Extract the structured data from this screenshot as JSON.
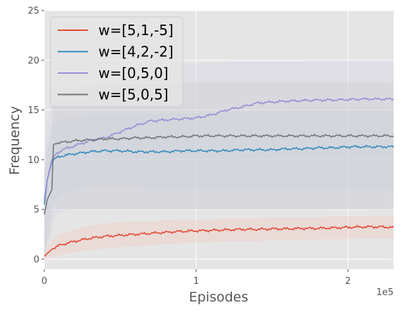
{
  "chart_data": {
    "type": "line",
    "xlabel": "Episodes",
    "ylabel": "Frequency",
    "x_offset_label": "1e5",
    "xlim": [
      0,
      2.3
    ],
    "ylim": [
      -1,
      25
    ],
    "x_ticks": [
      0,
      1,
      2
    ],
    "x_tick_labels": [
      "0",
      "1",
      "2"
    ],
    "y_ticks": [
      0,
      5,
      10,
      15,
      20,
      25
    ],
    "y_tick_labels": [
      "0",
      "5",
      "10",
      "15",
      "20",
      "25"
    ],
    "grid": true,
    "legend_position": "top-left",
    "colors": {
      "background": "#e5e5e5",
      "grid": "#ffffff",
      "band_red": "#f4c8bc",
      "band_blue": "#c6d6e3",
      "band_purple": "#d8d3ec",
      "band_gray": "#cccccc"
    },
    "series": [
      {
        "name": "w=[5,1,-5]",
        "color": "#e24a33",
        "x": [
          0,
          0.05,
          0.1,
          0.2,
          0.3,
          0.4,
          0.5,
          0.6,
          0.7,
          0.8,
          0.9,
          1.0,
          1.1,
          1.2,
          1.3,
          1.4,
          1.5,
          1.6,
          1.7,
          1.8,
          1.9,
          2.0,
          2.1,
          2.2,
          2.3
        ],
        "y": [
          0.3,
          1.0,
          1.4,
          1.8,
          2.1,
          2.3,
          2.4,
          2.5,
          2.6,
          2.7,
          2.8,
          2.85,
          2.9,
          2.95,
          3.0,
          3.0,
          3.05,
          3.05,
          3.1,
          3.1,
          3.15,
          3.2,
          3.25,
          3.25,
          3.2
        ],
        "band_low": [
          0,
          0.2,
          0.4,
          0.7,
          0.9,
          1.1,
          1.2,
          1.3,
          1.4,
          1.5,
          1.6,
          1.7,
          1.7,
          1.8,
          1.8,
          1.8,
          1.9,
          1.9,
          1.9,
          2.0,
          2.0,
          2.0,
          2.1,
          2.1,
          2.1
        ],
        "band_high": [
          0.7,
          1.9,
          2.5,
          3.0,
          3.4,
          3.6,
          3.7,
          3.8,
          3.8,
          3.9,
          4.0,
          4.0,
          4.0,
          4.1,
          4.1,
          4.1,
          4.2,
          4.2,
          4.2,
          4.2,
          4.3,
          4.3,
          4.3,
          4.4,
          4.4
        ]
      },
      {
        "name": "w=[4,2,-2]",
        "color": "#348abd",
        "x": [
          0,
          0.02,
          0.05,
          0.08,
          0.12,
          0.2,
          0.3,
          0.4,
          0.5,
          0.6,
          0.7,
          0.8,
          0.9,
          1.0,
          1.1,
          1.2,
          1.3,
          1.4,
          1.5,
          1.6,
          1.7,
          1.8,
          1.9,
          2.0,
          2.1,
          2.2,
          2.3
        ],
        "y": [
          5.5,
          8.0,
          9.8,
          10.2,
          10.4,
          10.6,
          10.8,
          10.9,
          10.9,
          10.8,
          10.8,
          10.8,
          10.9,
          10.9,
          10.9,
          10.9,
          11.0,
          11.0,
          11.0,
          11.1,
          11.1,
          11.2,
          11.2,
          11.3,
          11.3,
          11.3,
          11.3
        ],
        "band_low": [
          0,
          3.0,
          5.5,
          6.0,
          6.5,
          7.0,
          7.2,
          7.2,
          7.2,
          7.2,
          7.0,
          7.0,
          7.0,
          7.0,
          7.0,
          7.0,
          7.0,
          7.0,
          7.0,
          7.0,
          7.0,
          7.0,
          7.0,
          7.0,
          7.0,
          7.0,
          7.0
        ],
        "band_high": [
          8.0,
          12.0,
          13.5,
          13.8,
          14.0,
          14.3,
          14.5,
          14.5,
          14.6,
          14.6,
          14.6,
          14.7,
          14.7,
          14.7,
          14.8,
          14.8,
          14.8,
          14.9,
          14.9,
          15.0,
          15.0,
          15.0,
          15.0,
          15.0,
          15.0,
          15.0,
          15.0
        ]
      },
      {
        "name": "w=[0,5,0]",
        "color": "#988ed5",
        "x": [
          0,
          0.02,
          0.05,
          0.08,
          0.12,
          0.2,
          0.3,
          0.4,
          0.5,
          0.6,
          0.7,
          0.8,
          0.9,
          1.0,
          1.1,
          1.2,
          1.3,
          1.4,
          1.5,
          1.6,
          1.7,
          1.8,
          1.9,
          2.0,
          2.1,
          2.2,
          2.3
        ],
        "y": [
          6.0,
          8.0,
          10.0,
          10.6,
          11.0,
          11.4,
          11.9,
          12.2,
          12.8,
          13.4,
          13.9,
          14.0,
          14.1,
          14.2,
          14.5,
          15.0,
          15.3,
          15.7,
          15.8,
          15.9,
          15.95,
          16.0,
          16.0,
          16.05,
          16.1,
          16.1,
          16.1
        ],
        "band_low": [
          0,
          2.0,
          4.0,
          4.5,
          4.8,
          5.0,
          5.0,
          5.0,
          5.0,
          5.0,
          5.0,
          5.0,
          5.0,
          5.0,
          5.0,
          5.0,
          5.0,
          5.0,
          5.0,
          5.0,
          5.0,
          5.0,
          5.0,
          5.0,
          5.0,
          5.0,
          5.0
        ],
        "band_high": [
          10.0,
          14.0,
          15.5,
          16.0,
          16.3,
          16.8,
          17.2,
          17.5,
          17.8,
          18.3,
          18.8,
          19.2,
          19.5,
          19.7,
          19.8,
          19.8,
          19.9,
          19.9,
          19.9,
          19.9,
          19.9,
          20.0,
          20.0,
          20.0,
          20.0,
          20.0,
          20.0
        ]
      },
      {
        "name": "w=[5,0,5]",
        "color": "#777777",
        "x": [
          0,
          0.02,
          0.05,
          0.06,
          0.08,
          0.15,
          0.2,
          0.3,
          0.4,
          0.5,
          0.6,
          0.7,
          0.8,
          0.9,
          1.0,
          1.1,
          1.2,
          1.3,
          1.4,
          1.5,
          1.6,
          1.7,
          1.8,
          1.9,
          2.0,
          2.1,
          2.2,
          2.3
        ],
        "y": [
          4.5,
          6.0,
          7.0,
          11.5,
          11.7,
          11.8,
          11.9,
          12.0,
          12.1,
          12.1,
          12.2,
          12.2,
          12.3,
          12.3,
          12.4,
          12.4,
          12.4,
          12.4,
          12.4,
          12.4,
          12.4,
          12.4,
          12.4,
          12.4,
          12.4,
          12.4,
          12.4,
          12.4
        ],
        "band_low": [
          0,
          1.5,
          3.0,
          5.0,
          5.0,
          5.0,
          5.0,
          5.0,
          5.0,
          5.0,
          5.0,
          5.0,
          5.0,
          5.0,
          5.0,
          5.0,
          5.0,
          5.0,
          5.0,
          5.0,
          5.0,
          5.0,
          5.0,
          5.0,
          5.0,
          5.0,
          5.0,
          5.0
        ],
        "band_high": [
          9.0,
          11.0,
          12.5,
          17.0,
          17.2,
          17.3,
          17.4,
          17.5,
          17.5,
          17.5,
          17.6,
          17.6,
          17.7,
          17.7,
          17.8,
          17.8,
          17.8,
          17.8,
          17.8,
          17.8,
          17.8,
          17.8,
          17.8,
          17.8,
          17.8,
          17.8,
          17.8,
          17.8
        ]
      }
    ]
  }
}
